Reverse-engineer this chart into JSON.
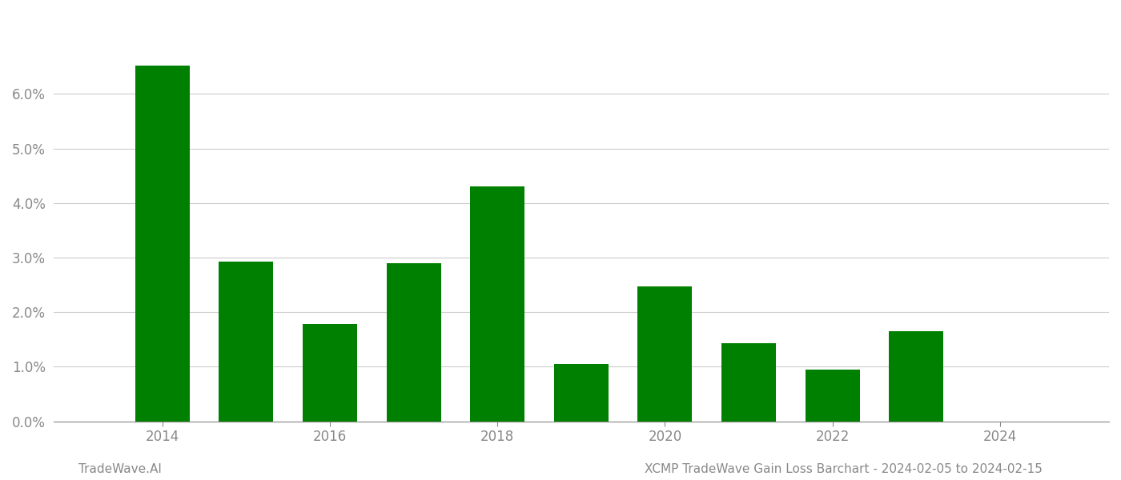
{
  "years": [
    2014,
    2015,
    2016,
    2017,
    2018,
    2019,
    2020,
    2021,
    2022,
    2023
  ],
  "values": [
    0.0652,
    0.0293,
    0.0178,
    0.029,
    0.043,
    0.0105,
    0.0247,
    0.0143,
    0.0095,
    0.0165
  ],
  "bar_color": "#008000",
  "background_color": "#ffffff",
  "ylim": [
    0,
    0.075
  ],
  "yticks": [
    0.0,
    0.01,
    0.02,
    0.03,
    0.04,
    0.05,
    0.06
  ],
  "xlim_left": 2012.7,
  "xlim_right": 2025.3,
  "xtick_years": [
    2014,
    2016,
    2018,
    2020,
    2022,
    2024
  ],
  "footer_left": "TradeWave.AI",
  "footer_right": "XCMP TradeWave Gain Loss Barchart - 2024-02-05 to 2024-02-15",
  "grid_color": "#cccccc",
  "tick_label_color": "#888888",
  "footer_color": "#888888",
  "bar_width": 0.65
}
